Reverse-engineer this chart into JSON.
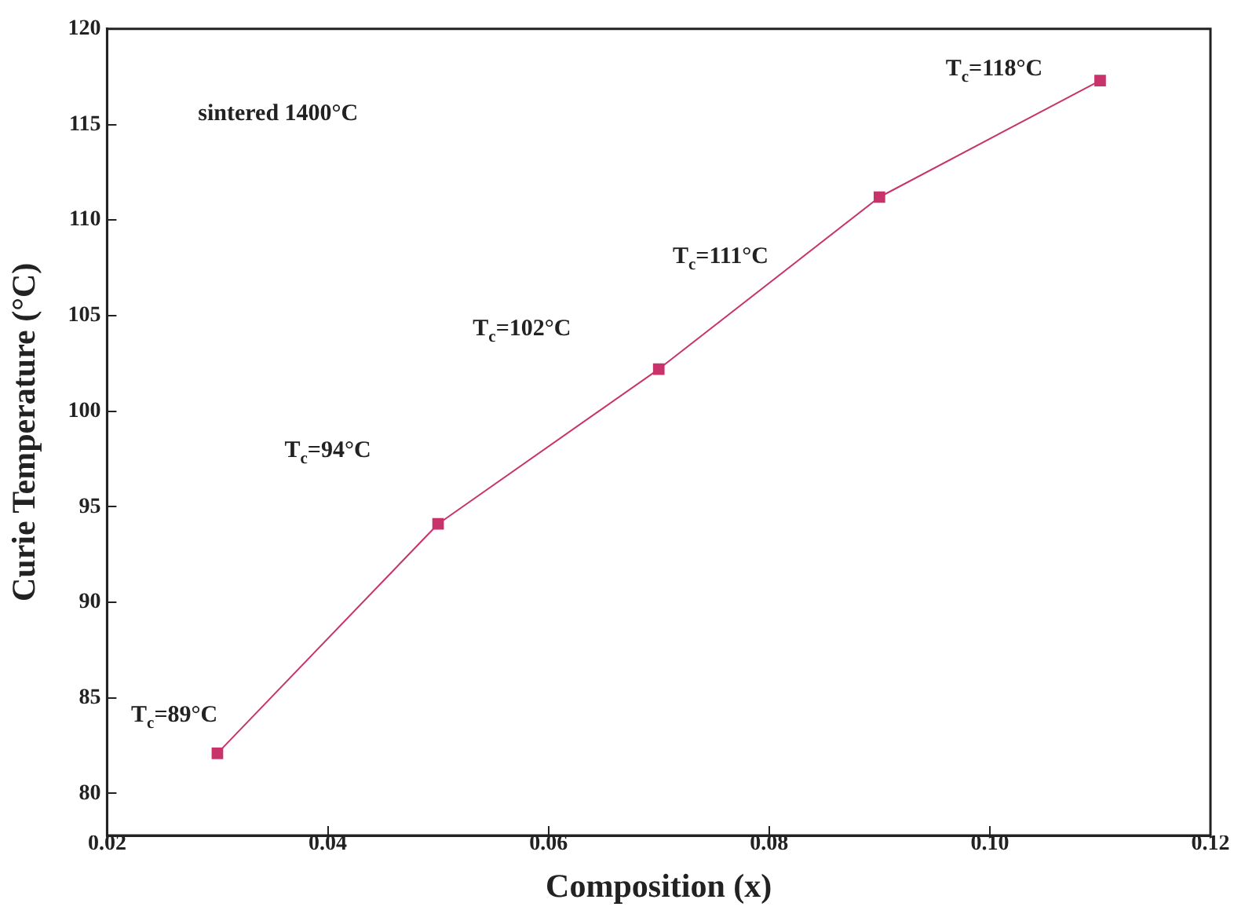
{
  "chart_data": {
    "type": "line",
    "xlabel": "Composition (x)",
    "ylabel": "Curie Temperature (°C)",
    "x": [
      0.03,
      0.05,
      0.07,
      0.09,
      0.11
    ],
    "series": [
      {
        "color": "#c8336b",
        "values": [
          82.1,
          94.1,
          102.2,
          111.2,
          117.3
        ]
      }
    ],
    "xlim": [
      0.02,
      0.12
    ],
    "xticks": [
      0.02,
      0.04,
      0.06,
      0.08,
      {
        "value": 0.1,
        "label": "0.10"
      },
      0.12
    ],
    "ylim": [
      77.8,
      120
    ],
    "yticks": [
      80,
      85,
      90,
      95,
      100,
      105,
      110,
      115,
      120
    ],
    "grid": false,
    "legend": false,
    "marker": "square",
    "line_style": "solid",
    "annotations": [
      "sintered 1400°C",
      "T$_{c}$=89°C",
      "T$_{c}$=94°C",
      "T$_{c}$=102°C",
      "T$_{c}$=111°C",
      "T$_{c}$=118°C"
    ]
  }
}
